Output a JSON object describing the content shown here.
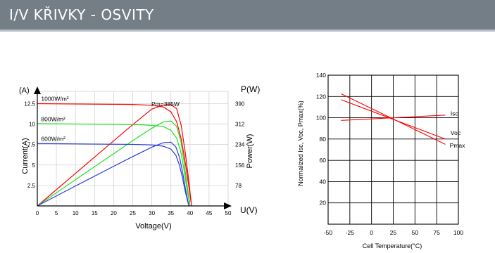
{
  "header": {
    "title": "I/V KŘIVKY - OSVITY"
  },
  "colors": {
    "header_bg": "#737e87",
    "red": "#ff0000",
    "green": "#22dd22",
    "blue": "#2a3bd8"
  },
  "chart_data": [
    {
      "type": "line",
      "xlabel": "Voltage(V)",
      "ylabel": "Current(A)",
      "y2label": "Power(W)",
      "y_axis_unit": "(A)",
      "y2_axis_unit": "P(W)",
      "x_axis_unit": "U(V)",
      "xlim": [
        0,
        50
      ],
      "ylim": [
        0,
        14
      ],
      "y2lim": [
        0,
        436.8
      ],
      "xticks": [
        0,
        5,
        10,
        15,
        20,
        25,
        30,
        35,
        40,
        45,
        50
      ],
      "yticks": [
        2.5,
        5,
        7.5,
        10,
        12.5
      ],
      "ytick_labels": [
        "2.5",
        "5",
        "7.5",
        "10",
        "12.5"
      ],
      "y2ticks": [
        78,
        156,
        234,
        312,
        390
      ],
      "y2tick_labels": [
        "78",
        "156",
        "234",
        "312",
        "390"
      ],
      "grid": true,
      "annotations": [
        {
          "text": "Pm=385W",
          "x": 32.5,
          "y": 12.6
        }
      ],
      "series": [
        {
          "name": "1000W/m²",
          "label_x": 1,
          "label_y": 12.7,
          "color": "#ff0000",
          "iv": [
            [
              0,
              12.5
            ],
            [
              25,
              12.4
            ],
            [
              30,
              12.3
            ],
            [
              33,
              12.1
            ],
            [
              35,
              11.5
            ],
            [
              36.5,
              10.3
            ],
            [
              37.7,
              8.2
            ],
            [
              38.7,
              5.5
            ],
            [
              39.5,
              3
            ],
            [
              40.3,
              0.4
            ]
          ],
          "pv": [
            [
              0,
              0
            ],
            [
              5,
              62
            ],
            [
              10,
              124
            ],
            [
              15,
              186
            ],
            [
              20,
              248
            ],
            [
              25,
              310
            ],
            [
              30,
              369
            ],
            [
              33,
              385
            ],
            [
              35,
              386
            ],
            [
              36.5,
              371
            ],
            [
              37.7,
              307
            ],
            [
              38.7,
              210
            ],
            [
              39.5,
              118
            ],
            [
              40.3,
              16
            ],
            [
              40.4,
              0
            ]
          ]
        },
        {
          "name": "800W/m²",
          "label_x": 1,
          "label_y": 10.2,
          "color": "#22dd22",
          "iv": [
            [
              0,
              10.05
            ],
            [
              25,
              9.95
            ],
            [
              30,
              9.85
            ],
            [
              33,
              9.7
            ],
            [
              35,
              9.25
            ],
            [
              36.5,
              8.3
            ],
            [
              37.6,
              6.6
            ],
            [
              38.4,
              4.5
            ],
            [
              39.1,
              2.4
            ],
            [
              39.9,
              0.3
            ]
          ],
          "pv": [
            [
              0,
              0
            ],
            [
              10,
              100
            ],
            [
              20,
              199
            ],
            [
              25,
              249
            ],
            [
              30,
              296
            ],
            [
              33,
              320
            ],
            [
              35,
              324
            ],
            [
              36.5,
              303
            ],
            [
              37.6,
              248
            ],
            [
              38.4,
              173
            ],
            [
              39.1,
              94
            ],
            [
              39.9,
              12
            ],
            [
              40,
              0
            ]
          ]
        },
        {
          "name": "600W/m²",
          "label_x": 1,
          "label_y": 7.8,
          "color": "#2a3bd8",
          "iv": [
            [
              0,
              7.62
            ],
            [
              25,
              7.52
            ],
            [
              30,
              7.45
            ],
            [
              33,
              7.3
            ],
            [
              35,
              6.95
            ],
            [
              36.3,
              6.2
            ],
            [
              37.3,
              4.9
            ],
            [
              38.1,
              3.3
            ],
            [
              38.8,
              1.7
            ],
            [
              39.6,
              0.2
            ]
          ],
          "pv": [
            [
              0,
              0
            ],
            [
              10,
              76
            ],
            [
              20,
              151
            ],
            [
              25,
              188
            ],
            [
              30,
              224
            ],
            [
              33,
              241
            ],
            [
              35,
              243
            ],
            [
              36.3,
              225
            ],
            [
              37.3,
              183
            ],
            [
              38.1,
              126
            ],
            [
              38.8,
              66
            ],
            [
              39.6,
              8
            ],
            [
              39.7,
              0
            ]
          ]
        }
      ]
    },
    {
      "type": "line",
      "xlabel": "Cell Temperature(°C)",
      "ylabel": "Normalized Isc, Voc, Pmax(%)",
      "xlim": [
        -50,
        100
      ],
      "ylim": [
        0,
        140
      ],
      "xticks": [
        -50,
        -25,
        0,
        25,
        50,
        75,
        100
      ],
      "xtick_labels": [
        "-50",
        "-25",
        "0",
        "25",
        "50",
        "75",
        "100"
      ],
      "yticks": [
        20,
        40,
        60,
        80,
        100,
        120,
        140
      ],
      "ytick_labels": [
        "20",
        "40",
        "60",
        "80",
        "100",
        "120",
        "140"
      ],
      "grid": true,
      "series": [
        {
          "name": "Isc",
          "label_x": 91,
          "label_y": 104,
          "color": "#ff0000",
          "points": [
            [
              -35,
              97.5
            ],
            [
              85,
              102.5
            ]
          ]
        },
        {
          "name": "Voc",
          "label_x": 91,
          "label_y": 86,
          "color": "#ff0000",
          "points": [
            [
              -35,
              117
            ],
            [
              85,
              80
            ]
          ]
        },
        {
          "name": "Pmax",
          "label_x": 90,
          "label_y": 74,
          "color": "#ff0000",
          "points": [
            [
              -35,
              122.5
            ],
            [
              85,
              75
            ]
          ]
        }
      ]
    }
  ]
}
